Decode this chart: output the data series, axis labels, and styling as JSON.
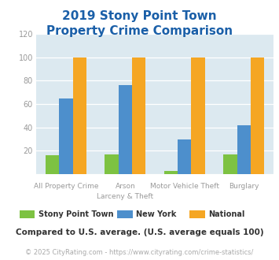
{
  "title": "2019 Stony Point Town\nProperty Crime Comparison",
  "x_labels_line1": [
    "All Property Crime",
    "Arson",
    "Motor Vehicle Theft",
    "Burglary"
  ],
  "x_labels_line2": [
    "",
    "Larceny & Theft",
    "",
    ""
  ],
  "series": {
    "Stony Point Town": [
      16,
      17,
      3,
      17
    ],
    "New York": [
      65,
      76,
      30,
      42
    ],
    "National": [
      100,
      100,
      100,
      100
    ]
  },
  "colors": {
    "Stony Point Town": "#7dc242",
    "New York": "#4d8fcc",
    "National": "#f5a623"
  },
  "ylim": [
    0,
    120
  ],
  "yticks": [
    0,
    20,
    40,
    60,
    80,
    100,
    120
  ],
  "plot_area_color": "#dce9f0",
  "title_color": "#1a5fa8",
  "title_fontsize": 11,
  "tick_label_color": "#999999",
  "xlabel_color": "#999999",
  "legend_label_color": "#333333",
  "note_text": "Compared to U.S. average. (U.S. average equals 100)",
  "note_color": "#333333",
  "note_fontsize": 7.5,
  "copyright_text": "© 2025 CityRating.com - https://www.cityrating.com/crime-statistics/",
  "copyright_color": "#aaaaaa",
  "copyright_fontsize": 6.0,
  "bar_width": 0.23,
  "series_names": [
    "Stony Point Town",
    "New York",
    "National"
  ]
}
